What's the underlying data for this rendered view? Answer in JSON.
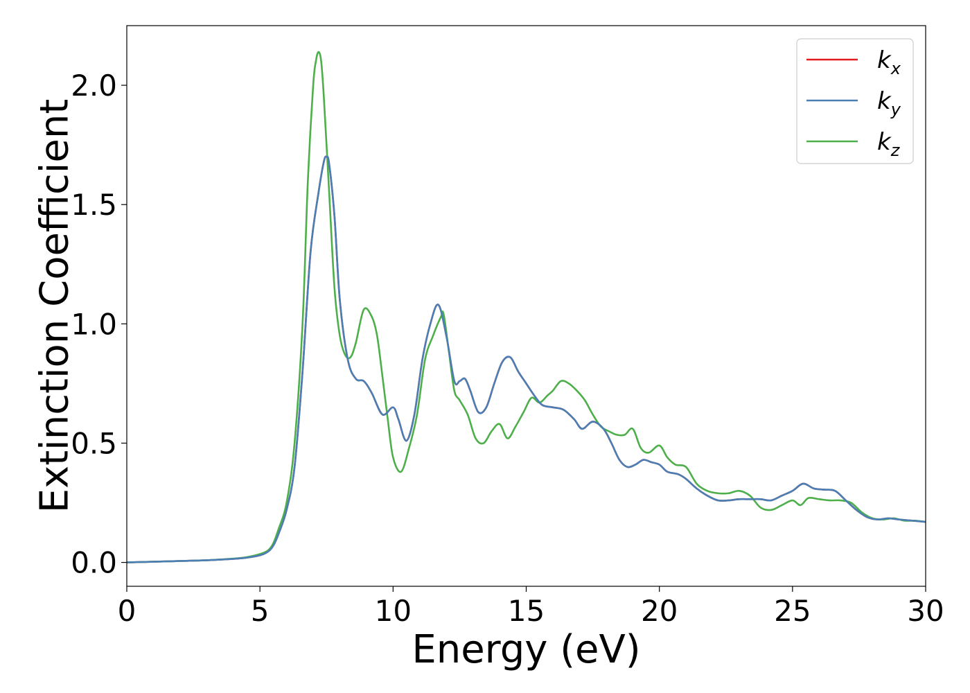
{
  "chart_data": {
    "type": "line",
    "title": "",
    "xlabel": "Energy (eV)",
    "ylabel": "Extinction Coefficient",
    "xlim": [
      0,
      30
    ],
    "ylim": [
      -0.1,
      2.25
    ],
    "x_ticks": [
      0,
      5,
      10,
      15,
      20,
      25,
      30
    ],
    "x_tick_labels": [
      "0",
      "5",
      "10",
      "15",
      "20",
      "25",
      "30"
    ],
    "y_ticks": [
      0.0,
      0.5,
      1.0,
      1.5,
      2.0
    ],
    "y_tick_labels": [
      "0.0",
      "0.5",
      "1.0",
      "1.5",
      "2.0"
    ],
    "grid": false,
    "legend_position": "top-right",
    "series": [
      {
        "name": "k",
        "subscript": "x",
        "color": "#e41a1c",
        "x": [
          0,
          1,
          2,
          3,
          4,
          4.5,
          5,
          5.3,
          5.5,
          5.7,
          6.0,
          6.3,
          6.6,
          6.9,
          7.2,
          7.4,
          7.5,
          7.6,
          7.8,
          8.0,
          8.3,
          8.6,
          8.9,
          9.2,
          9.6,
          10.0,
          10.2,
          10.5,
          10.8,
          11.1,
          11.4,
          11.7,
          12.0,
          12.3,
          12.5,
          12.7,
          12.9,
          13.2,
          13.5,
          13.8,
          14.1,
          14.4,
          14.7,
          15.0,
          15.3,
          15.6,
          16.0,
          16.4,
          16.8,
          17.1,
          17.5,
          17.9,
          18.2,
          18.5,
          18.8,
          19.1,
          19.4,
          19.7,
          20.0,
          20.3,
          20.7,
          21.0,
          21.4,
          21.8,
          22.2,
          22.6,
          23.0,
          23.4,
          23.8,
          24.2,
          24.6,
          25.0,
          25.4,
          25.8,
          26.2,
          26.6,
          27.0,
          27.4,
          27.8,
          28.2,
          28.6,
          29.0,
          29.5,
          30.0
        ],
        "values": [
          0.0,
          0.003,
          0.006,
          0.009,
          0.015,
          0.02,
          0.03,
          0.045,
          0.07,
          0.12,
          0.22,
          0.4,
          0.8,
          1.3,
          1.55,
          1.68,
          1.7,
          1.67,
          1.45,
          1.1,
          0.85,
          0.77,
          0.76,
          0.71,
          0.62,
          0.65,
          0.6,
          0.51,
          0.62,
          0.85,
          1.0,
          1.08,
          0.95,
          0.76,
          0.76,
          0.77,
          0.72,
          0.63,
          0.65,
          0.75,
          0.84,
          0.86,
          0.8,
          0.75,
          0.7,
          0.66,
          0.65,
          0.64,
          0.6,
          0.56,
          0.59,
          0.56,
          0.5,
          0.43,
          0.4,
          0.41,
          0.43,
          0.42,
          0.41,
          0.38,
          0.37,
          0.35,
          0.31,
          0.28,
          0.26,
          0.26,
          0.265,
          0.265,
          0.265,
          0.26,
          0.28,
          0.3,
          0.33,
          0.31,
          0.305,
          0.3,
          0.26,
          0.22,
          0.19,
          0.18,
          0.185,
          0.18,
          0.175,
          0.17
        ]
      },
      {
        "name": "k",
        "subscript": "y",
        "color": "#4a7fb5",
        "x": [
          0,
          1,
          2,
          3,
          4,
          4.5,
          5,
          5.3,
          5.5,
          5.7,
          6.0,
          6.3,
          6.6,
          6.9,
          7.2,
          7.4,
          7.5,
          7.6,
          7.8,
          8.0,
          8.3,
          8.6,
          8.9,
          9.2,
          9.6,
          10.0,
          10.2,
          10.5,
          10.8,
          11.1,
          11.4,
          11.7,
          12.0,
          12.3,
          12.5,
          12.7,
          12.9,
          13.2,
          13.5,
          13.8,
          14.1,
          14.4,
          14.7,
          15.0,
          15.3,
          15.6,
          16.0,
          16.4,
          16.8,
          17.1,
          17.5,
          17.9,
          18.2,
          18.5,
          18.8,
          19.1,
          19.4,
          19.7,
          20.0,
          20.3,
          20.7,
          21.0,
          21.4,
          21.8,
          22.2,
          22.6,
          23.0,
          23.4,
          23.8,
          24.2,
          24.6,
          25.0,
          25.4,
          25.8,
          26.2,
          26.6,
          27.0,
          27.4,
          27.8,
          28.2,
          28.6,
          29.0,
          29.5,
          30.0
        ],
        "values": [
          0.0,
          0.003,
          0.006,
          0.009,
          0.015,
          0.02,
          0.03,
          0.045,
          0.07,
          0.12,
          0.22,
          0.4,
          0.8,
          1.3,
          1.55,
          1.68,
          1.7,
          1.67,
          1.45,
          1.1,
          0.85,
          0.77,
          0.76,
          0.71,
          0.62,
          0.65,
          0.6,
          0.51,
          0.62,
          0.85,
          1.0,
          1.08,
          0.95,
          0.76,
          0.76,
          0.77,
          0.72,
          0.63,
          0.65,
          0.75,
          0.84,
          0.86,
          0.8,
          0.75,
          0.7,
          0.66,
          0.65,
          0.64,
          0.6,
          0.56,
          0.59,
          0.56,
          0.5,
          0.43,
          0.4,
          0.41,
          0.43,
          0.42,
          0.41,
          0.38,
          0.37,
          0.35,
          0.31,
          0.28,
          0.26,
          0.26,
          0.265,
          0.265,
          0.265,
          0.26,
          0.28,
          0.3,
          0.33,
          0.31,
          0.305,
          0.3,
          0.26,
          0.22,
          0.19,
          0.18,
          0.185,
          0.18,
          0.175,
          0.17
        ]
      },
      {
        "name": "k",
        "subscript": "z",
        "color": "#4daf4a",
        "x": [
          0,
          1,
          2,
          3,
          4,
          4.5,
          5,
          5.3,
          5.5,
          5.7,
          6.0,
          6.3,
          6.6,
          6.8,
          7.0,
          7.1,
          7.2,
          7.3,
          7.4,
          7.6,
          7.8,
          8.0,
          8.2,
          8.4,
          8.6,
          8.9,
          9.2,
          9.4,
          9.6,
          9.8,
          10.0,
          10.3,
          10.6,
          10.9,
          11.2,
          11.5,
          11.8,
          11.9,
          12.1,
          12.3,
          12.5,
          12.8,
          13.1,
          13.4,
          13.7,
          14.0,
          14.3,
          14.6,
          14.9,
          15.2,
          15.5,
          15.8,
          16.0,
          16.3,
          16.6,
          16.9,
          17.2,
          17.5,
          17.8,
          18.1,
          18.4,
          18.7,
          19.0,
          19.3,
          19.6,
          20.0,
          20.3,
          20.6,
          21.0,
          21.4,
          21.8,
          22.2,
          22.6,
          23.0,
          23.4,
          23.8,
          24.2,
          24.6,
          25.0,
          25.3,
          25.6,
          26.0,
          26.4,
          26.8,
          27.2,
          27.6,
          28.0,
          28.4,
          28.8,
          29.2,
          29.6,
          30.0
        ],
        "values": [
          0.0,
          0.003,
          0.006,
          0.009,
          0.016,
          0.022,
          0.035,
          0.05,
          0.08,
          0.14,
          0.25,
          0.5,
          1.0,
          1.6,
          2.0,
          2.1,
          2.14,
          2.1,
          1.95,
          1.55,
          1.15,
          0.95,
          0.87,
          0.86,
          0.92,
          1.06,
          1.03,
          0.95,
          0.78,
          0.6,
          0.44,
          0.38,
          0.48,
          0.62,
          0.85,
          0.95,
          1.03,
          1.04,
          0.88,
          0.72,
          0.68,
          0.62,
          0.52,
          0.5,
          0.55,
          0.58,
          0.52,
          0.57,
          0.63,
          0.69,
          0.67,
          0.7,
          0.72,
          0.76,
          0.75,
          0.72,
          0.68,
          0.62,
          0.57,
          0.55,
          0.535,
          0.535,
          0.56,
          0.48,
          0.46,
          0.49,
          0.44,
          0.41,
          0.4,
          0.33,
          0.3,
          0.29,
          0.29,
          0.3,
          0.28,
          0.23,
          0.22,
          0.24,
          0.26,
          0.24,
          0.27,
          0.265,
          0.26,
          0.26,
          0.25,
          0.21,
          0.185,
          0.18,
          0.185,
          0.175,
          0.175,
          0.17
        ]
      }
    ]
  }
}
